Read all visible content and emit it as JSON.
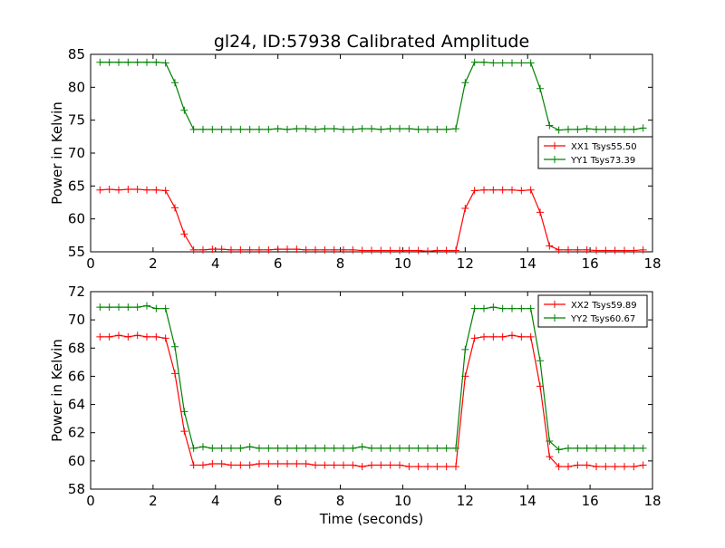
{
  "title": "gl24, ID:57938 Calibrated Amplitude",
  "xlabel": "Time (seconds)",
  "colors": {
    "red": "#ff0000",
    "green": "#008000",
    "axis": "#000000"
  },
  "chart_data": [
    {
      "type": "line",
      "title": "gl24, ID:57938 Calibrated Amplitude",
      "xlabel": "",
      "ylabel": "Power in Kelvin",
      "xlim": [
        0,
        18
      ],
      "ylim": [
        55,
        85
      ],
      "xticks": [
        "0",
        "2",
        "4",
        "6",
        "8",
        "10",
        "12",
        "14",
        "16",
        "18"
      ],
      "yticks": [
        "55",
        "60",
        "65",
        "70",
        "75",
        "80",
        "85"
      ],
      "grid": false,
      "legend_position": "right",
      "x": [
        0.3,
        0.6,
        0.9,
        1.2,
        1.5,
        1.8,
        2.1,
        2.4,
        2.7,
        3.0,
        3.3,
        3.6,
        3.9,
        4.2,
        4.5,
        4.8,
        5.1,
        5.4,
        5.7,
        6.0,
        6.3,
        6.6,
        6.9,
        7.2,
        7.5,
        7.8,
        8.1,
        8.4,
        8.7,
        9.0,
        9.3,
        9.6,
        9.9,
        10.2,
        10.5,
        10.8,
        11.1,
        11.4,
        11.7,
        12.0,
        12.3,
        12.6,
        12.9,
        13.2,
        13.5,
        13.8,
        14.1,
        14.4,
        14.7,
        15.0,
        15.3,
        15.6,
        15.9,
        16.2,
        16.5,
        16.8,
        17.1,
        17.4,
        17.7
      ],
      "series": [
        {
          "name": "XX1 Tsys55.50",
          "color": "#ff0000",
          "values": [
            64.4,
            64.5,
            64.4,
            64.5,
            64.5,
            64.4,
            64.4,
            64.3,
            61.7,
            57.7,
            55.3,
            55.3,
            55.4,
            55.4,
            55.3,
            55.3,
            55.3,
            55.3,
            55.3,
            55.4,
            55.4,
            55.4,
            55.3,
            55.3,
            55.3,
            55.3,
            55.3,
            55.3,
            55.2,
            55.2,
            55.2,
            55.2,
            55.2,
            55.2,
            55.2,
            55.1,
            55.2,
            55.2,
            55.2,
            61.6,
            64.3,
            64.4,
            64.4,
            64.4,
            64.4,
            64.3,
            64.4,
            61.0,
            55.9,
            55.3,
            55.3,
            55.3,
            55.3,
            55.2,
            55.2,
            55.2,
            55.2,
            55.2,
            55.3
          ]
        },
        {
          "name": "YY1 Tsys73.39",
          "color": "#008000",
          "values": [
            83.8,
            83.8,
            83.8,
            83.8,
            83.8,
            83.8,
            83.8,
            83.7,
            80.7,
            76.5,
            73.6,
            73.6,
            73.6,
            73.6,
            73.6,
            73.6,
            73.6,
            73.6,
            73.6,
            73.7,
            73.6,
            73.7,
            73.7,
            73.6,
            73.7,
            73.7,
            73.6,
            73.6,
            73.7,
            73.7,
            73.6,
            73.7,
            73.7,
            73.7,
            73.6,
            73.6,
            73.6,
            73.6,
            73.7,
            80.7,
            83.8,
            83.8,
            83.7,
            83.7,
            83.7,
            83.7,
            83.7,
            79.8,
            74.2,
            73.5,
            73.6,
            73.6,
            73.7,
            73.6,
            73.6,
            73.6,
            73.6,
            73.6,
            73.8
          ]
        }
      ]
    },
    {
      "type": "line",
      "title": "",
      "xlabel": "Time (seconds)",
      "ylabel": "Power in Kelvin",
      "xlim": [
        0,
        18
      ],
      "ylim": [
        58,
        72
      ],
      "xticks": [
        "0",
        "2",
        "4",
        "6",
        "8",
        "10",
        "12",
        "14",
        "16",
        "18"
      ],
      "yticks": [
        "58",
        "60",
        "62",
        "64",
        "66",
        "68",
        "70",
        "72"
      ],
      "grid": false,
      "legend_position": "top-right",
      "x": [
        0.3,
        0.6,
        0.9,
        1.2,
        1.5,
        1.8,
        2.1,
        2.4,
        2.7,
        3.0,
        3.3,
        3.6,
        3.9,
        4.2,
        4.5,
        4.8,
        5.1,
        5.4,
        5.7,
        6.0,
        6.3,
        6.6,
        6.9,
        7.2,
        7.5,
        7.8,
        8.1,
        8.4,
        8.7,
        9.0,
        9.3,
        9.6,
        9.9,
        10.2,
        10.5,
        10.8,
        11.1,
        11.4,
        11.7,
        12.0,
        12.3,
        12.6,
        12.9,
        13.2,
        13.5,
        13.8,
        14.1,
        14.4,
        14.7,
        15.0,
        15.3,
        15.6,
        15.9,
        16.2,
        16.5,
        16.8,
        17.1,
        17.4,
        17.7
      ],
      "series": [
        {
          "name": "XX2 Tsys59.89",
          "color": "#ff0000",
          "values": [
            68.8,
            68.8,
            68.9,
            68.8,
            68.9,
            68.8,
            68.8,
            68.7,
            66.2,
            62.1,
            59.7,
            59.7,
            59.8,
            59.8,
            59.7,
            59.7,
            59.7,
            59.8,
            59.8,
            59.8,
            59.8,
            59.8,
            59.8,
            59.7,
            59.7,
            59.7,
            59.7,
            59.7,
            59.6,
            59.7,
            59.7,
            59.7,
            59.7,
            59.6,
            59.6,
            59.6,
            59.6,
            59.6,
            59.6,
            66.0,
            68.7,
            68.8,
            68.8,
            68.8,
            68.9,
            68.8,
            68.8,
            65.3,
            60.3,
            59.6,
            59.6,
            59.7,
            59.7,
            59.6,
            59.6,
            59.6,
            59.6,
            59.6,
            59.7
          ]
        },
        {
          "name": "YY2 Tsys60.67",
          "color": "#008000",
          "values": [
            70.9,
            70.9,
            70.9,
            70.9,
            70.9,
            71.0,
            70.8,
            70.8,
            68.1,
            63.5,
            60.9,
            61.0,
            60.9,
            60.9,
            60.9,
            60.9,
            61.0,
            60.9,
            60.9,
            60.9,
            60.9,
            60.9,
            60.9,
            60.9,
            60.9,
            60.9,
            60.9,
            60.9,
            61.0,
            60.9,
            60.9,
            60.9,
            60.9,
            60.9,
            60.9,
            60.9,
            60.9,
            60.9,
            60.9,
            67.9,
            70.8,
            70.8,
            70.9,
            70.8,
            70.8,
            70.8,
            70.8,
            67.1,
            61.4,
            60.8,
            60.9,
            60.9,
            60.9,
            60.9,
            60.9,
            60.9,
            60.9,
            60.9,
            60.9
          ]
        }
      ]
    }
  ]
}
